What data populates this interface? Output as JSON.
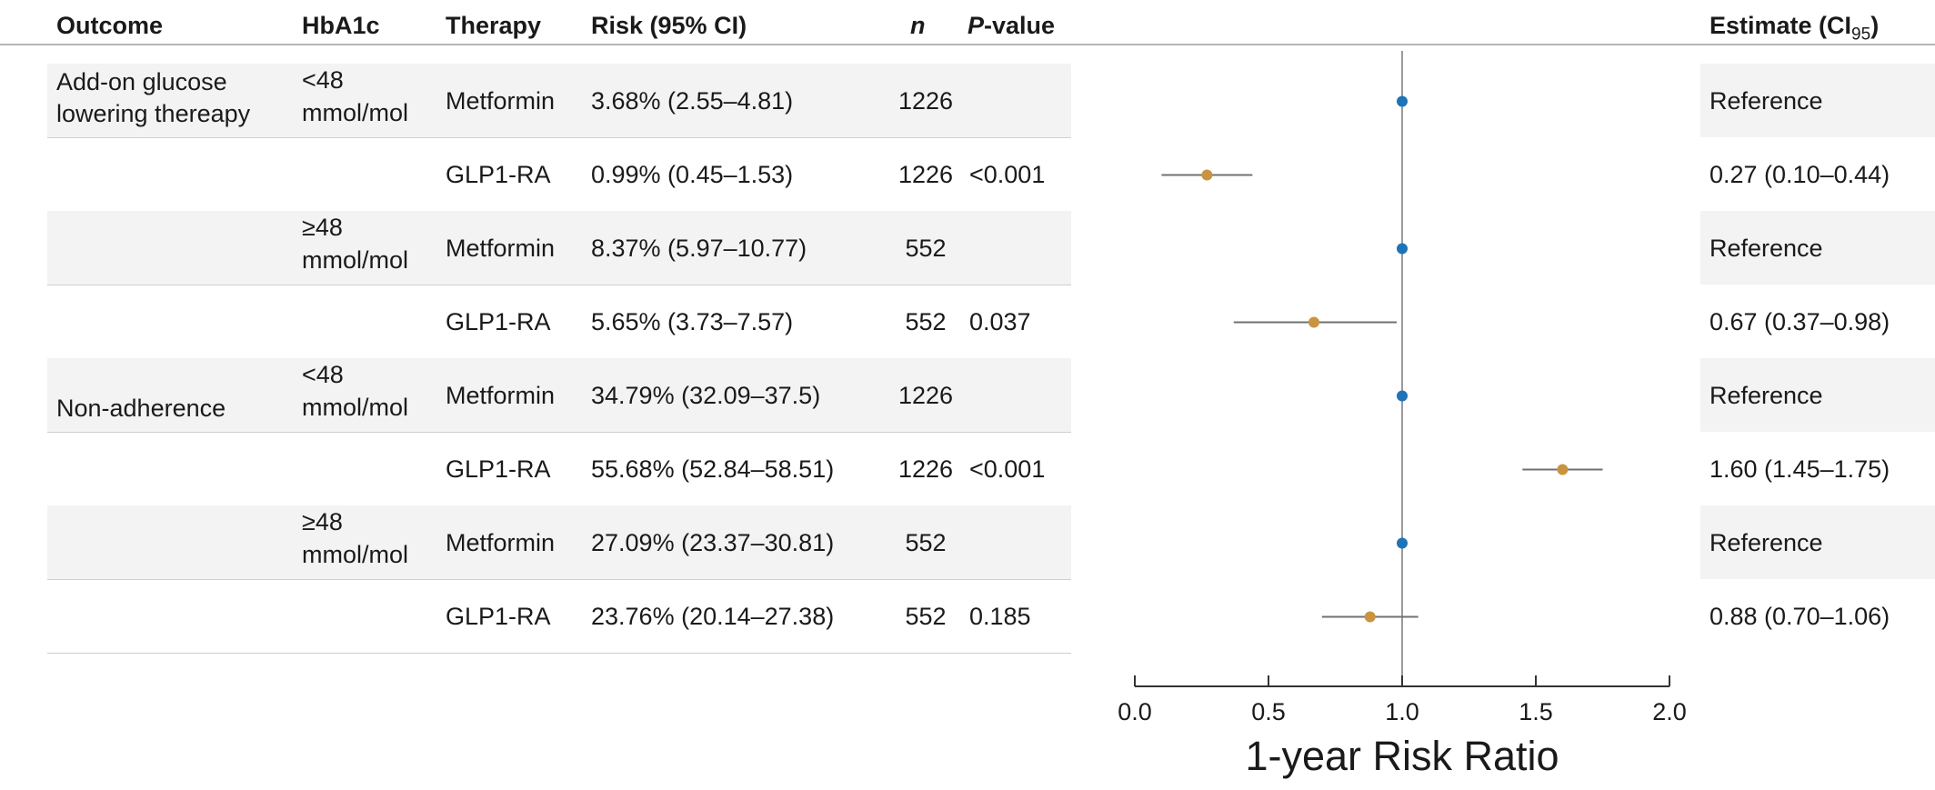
{
  "headers": {
    "outcome": "Outcome",
    "hba1c": "HbA1c",
    "therapy": "Therapy",
    "risk": "Risk (95% CI)",
    "n": "n",
    "pvalue_p": "P",
    "pvalue_rest": "-value",
    "estimate_main": "Estimate (CI",
    "estimate_sub": "95",
    "estimate_close": ")"
  },
  "rows": [
    {
      "outcome": "Add-on glucose lowering thereapy",
      "outcome_l1": "Add-on glucose",
      "outcome_l2": "lowering thereapy",
      "hba1c_l1": "<48",
      "hba1c_l2": "mmol/mol",
      "therapy": "Metformin",
      "risk": "3.68% (2.55–4.81)",
      "n": "1226",
      "pvalue": "",
      "estimate": "Reference"
    },
    {
      "outcome": "",
      "outcome_l1": "",
      "outcome_l2": "",
      "hba1c_l1": "",
      "hba1c_l2": "",
      "therapy": "GLP1-RA",
      "risk": "0.99% (0.45–1.53)",
      "n": "1226",
      "pvalue": "<0.001",
      "estimate": "0.27 (0.10–0.44)"
    },
    {
      "outcome": "",
      "outcome_l1": "",
      "outcome_l2": "",
      "hba1c_l1": "≥48",
      "hba1c_l2": "mmol/mol",
      "therapy": "Metformin",
      "risk": "8.37% (5.97–10.77)",
      "n": "552",
      "pvalue": "",
      "estimate": "Reference"
    },
    {
      "outcome": "",
      "outcome_l1": "",
      "outcome_l2": "",
      "hba1c_l1": "",
      "hba1c_l2": "",
      "therapy": "GLP1-RA",
      "risk": "5.65% (3.73–7.57)",
      "n": "552",
      "pvalue": "0.037",
      "estimate": "0.67 (0.37–0.98)"
    },
    {
      "outcome": "Non-adherence",
      "outcome_l1": "",
      "outcome_l2": "Non-adherence",
      "hba1c_l1": "<48",
      "hba1c_l2": "mmol/mol",
      "therapy": "Metformin",
      "risk": "34.79% (32.09–37.5)",
      "n": "1226",
      "pvalue": "",
      "estimate": "Reference"
    },
    {
      "outcome": "",
      "outcome_l1": "",
      "outcome_l2": "",
      "hba1c_l1": "",
      "hba1c_l2": "",
      "therapy": "GLP1-RA",
      "risk": "55.68% (52.84–58.51)",
      "n": "1226",
      "pvalue": "<0.001",
      "estimate": "1.60 (1.45–1.75)"
    },
    {
      "outcome": "",
      "outcome_l1": "",
      "outcome_l2": "",
      "hba1c_l1": "≥48",
      "hba1c_l2": "mmol/mol",
      "therapy": "Metformin",
      "risk": "27.09% (23.37–30.81)",
      "n": "552",
      "pvalue": "",
      "estimate": "Reference"
    },
    {
      "outcome": "",
      "outcome_l1": "",
      "outcome_l2": "",
      "hba1c_l1": "",
      "hba1c_l2": "",
      "therapy": "GLP1-RA",
      "risk": "23.76% (20.14–27.38)",
      "n": "552",
      "pvalue": "0.185",
      "estimate": "0.88 (0.70–1.06)"
    }
  ],
  "chart_data": {
    "type": "scatter",
    "subtype": "forest-plot",
    "xlabel": "1-year Risk Ratio",
    "xlim": [
      0,
      2
    ],
    "xticks": [
      "0.0",
      "0.5",
      "1.0",
      "1.5",
      "2.0"
    ],
    "xtick_values": [
      0,
      0.5,
      1.0,
      1.5,
      2.0
    ],
    "reference_line": 1.0,
    "categories": [
      "Metformin",
      "GLP1-RA",
      "Metformin",
      "GLP1-RA",
      "Metformin",
      "GLP1-RA",
      "Metformin",
      "GLP1-RA"
    ],
    "points": [
      {
        "estimate": 1.0,
        "lower": null,
        "upper": null,
        "group": "Metformin"
      },
      {
        "estimate": 0.27,
        "lower": 0.1,
        "upper": 0.44,
        "group": "GLP1-RA"
      },
      {
        "estimate": 1.0,
        "lower": null,
        "upper": null,
        "group": "Metformin"
      },
      {
        "estimate": 0.67,
        "lower": 0.37,
        "upper": 0.98,
        "group": "GLP1-RA"
      },
      {
        "estimate": 1.0,
        "lower": null,
        "upper": null,
        "group": "Metformin"
      },
      {
        "estimate": 1.6,
        "lower": 1.45,
        "upper": 1.75,
        "group": "GLP1-RA"
      },
      {
        "estimate": 1.0,
        "lower": null,
        "upper": null,
        "group": "Metformin"
      },
      {
        "estimate": 0.88,
        "lower": 0.7,
        "upper": 1.06,
        "group": "GLP1-RA"
      }
    ],
    "colors": {
      "Metformin": "#1f73b7",
      "GLP1-RA": "#c99440",
      "ci_line": "#707070",
      "ref_line": "#9a9a9a",
      "axis": "#333333"
    }
  }
}
